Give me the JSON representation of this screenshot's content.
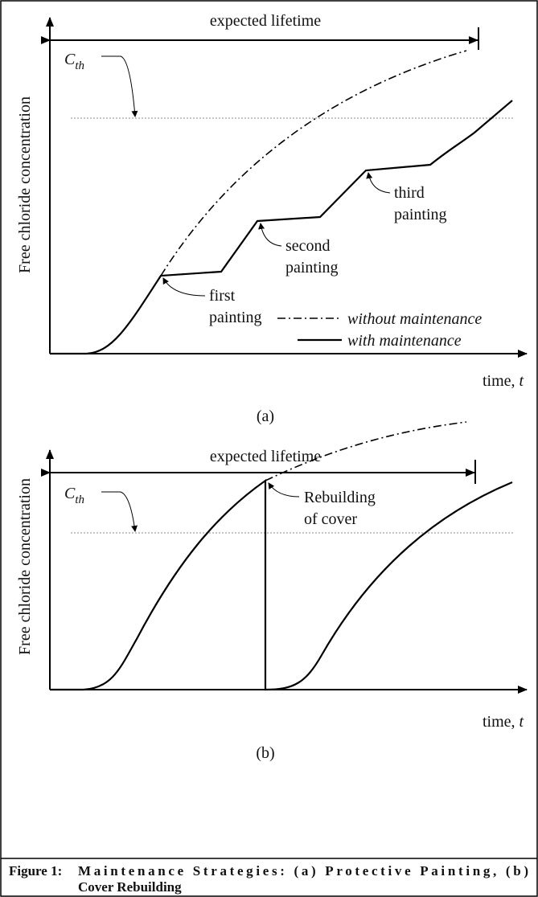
{
  "panels": [
    {
      "label": "(a)",
      "y_axis_label": "Free chloride concentration",
      "x_axis_label": {
        "text": "time,",
        "variable": "t"
      },
      "span_label": "expected lifetime",
      "threshold": {
        "symbol": "C",
        "subscript": "th"
      },
      "annotations": [
        [
          "first",
          "painting"
        ],
        [
          "second",
          "painting"
        ],
        [
          "third",
          "painting"
        ]
      ],
      "legend": [
        "without maintenance",
        "with maintenance"
      ]
    },
    {
      "label": "(b)",
      "y_axis_label": "Free chloride concentration",
      "x_axis_label": {
        "text": "time,",
        "variable": "t"
      },
      "span_label": "expected lifetime",
      "threshold": {
        "symbol": "C",
        "subscript": "th"
      },
      "annotations": [
        [
          "Rebuilding",
          "of cover"
        ]
      ]
    }
  ],
  "caption": {
    "number": "Figure 1:",
    "lines": [
      "Maintenance Strategies: (a) Protective Painting, (b)",
      "Cover Rebuilding"
    ]
  }
}
